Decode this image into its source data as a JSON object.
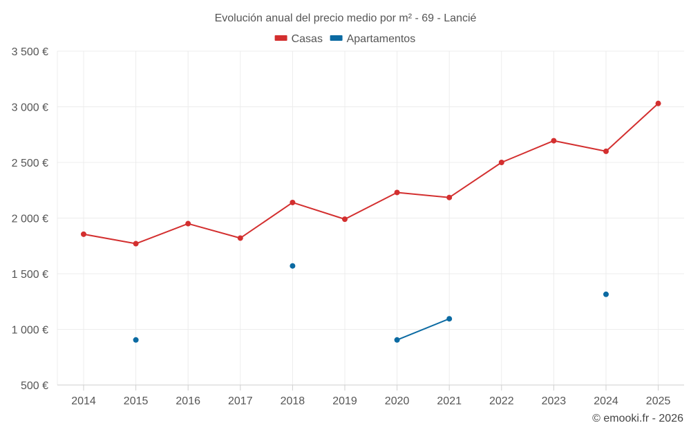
{
  "chart_data": {
    "type": "line",
    "title": "Evolución anual del precio medio por m² - 69 - Lancié",
    "xlabel": "",
    "ylabel": "",
    "categories": [
      "2014",
      "2015",
      "2016",
      "2017",
      "2018",
      "2019",
      "2020",
      "2021",
      "2022",
      "2023",
      "2024",
      "2025"
    ],
    "ylim": [
      500,
      3500
    ],
    "yticks": [
      500,
      1000,
      1500,
      2000,
      2500,
      3000,
      3500
    ],
    "ytick_labels": [
      "500 €",
      "1 000 €",
      "1 500 €",
      "2 000 €",
      "2 500 €",
      "3 000 €",
      "3 500 €"
    ],
    "grid": true,
    "legend_position": "top-center",
    "series": [
      {
        "name": "Casas",
        "color": "#d32f2f",
        "values": [
          1855,
          1770,
          1950,
          1820,
          2140,
          1990,
          2230,
          2185,
          2500,
          2695,
          2600,
          3030
        ]
      },
      {
        "name": "Apartamentos",
        "color": "#0b6aa2",
        "values": [
          null,
          905,
          null,
          null,
          1570,
          null,
          905,
          1095,
          null,
          null,
          1315,
          null
        ]
      }
    ]
  },
  "credit": "© emooki.fr - 2026"
}
